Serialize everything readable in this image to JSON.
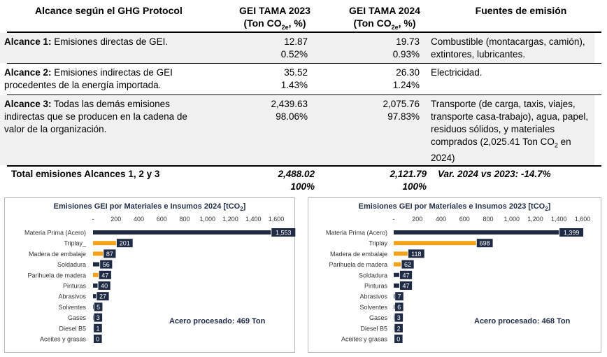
{
  "table": {
    "headers": {
      "scope": "Alcance según el GHG Protocol",
      "y2023_line1": "GEI TAMA 2023",
      "y2023_line2_pre": "(Ton CO",
      "y2023_line2_sub": "2e",
      "y2023_line2_post": ", %)",
      "y2024_line1": "GEI TAMA 2024",
      "y2024_line2_pre": "(Ton CO",
      "y2024_line2_sub": "2e",
      "y2024_line2_post": ", %)",
      "sources": "Fuentes de emisión"
    },
    "rows": [
      {
        "scope_bold": "Alcance 1:",
        "scope_text": " Emisiones directas de GEI.",
        "v2023": "12.87",
        "p2023": "0.52%",
        "v2024": "19.73",
        "p2024": "0.93%",
        "sources": "Combustible (montacargas, camión), extintores, lubricantes."
      },
      {
        "scope_bold": "Alcance 2:",
        "scope_text": " Emisiones indirectas de GEI procedentes de la energía importada.",
        "v2023": "35.52",
        "p2023": "1.43%",
        "v2024": "26.30",
        "p2024": "1.24%",
        "sources": "Electricidad."
      },
      {
        "scope_bold": "Alcance 3:",
        "scope_text": " Todas las demás emisiones indirectas que se producen en la cadena de valor de la organización.",
        "v2023": "2,439.63",
        "p2023": "98.06%",
        "v2024": "2,075.76",
        "p2024": "97.83%",
        "sources_pre": "Transporte (de carga, taxis, viajes, transporte casa-trabajo), agua, papel, residuos sólidos, y materiales comprados (2,025.41 Ton CO",
        "sources_sub": "2",
        "sources_post": " en 2024)"
      }
    ],
    "total": {
      "label": "Total emisiones Alcances 1, 2 y 3",
      "v2023": "2,488.02",
      "p2023": "100%",
      "v2024": "2,121.79",
      "p2024": "100%",
      "variation": "Var. 2024 vs 2023: -14.7%"
    }
  },
  "colors": {
    "navy": "#1f2a44",
    "orange": "#f5a21b",
    "shade": "#f0f0f0"
  },
  "chart_data": [
    {
      "type": "bar",
      "orientation": "horizontal",
      "title_pre": "Emisiones GEI por Materiales e Insumos 2024 [tCO",
      "title_sub": "2",
      "title_post": "]",
      "note": "Acero procesado: 469 Ton",
      "x_ticks": [
        "-",
        "200",
        "400",
        "600",
        "800",
        "1,000",
        "1,200",
        "1,400",
        "1,600"
      ],
      "xlim": [
        0,
        1600
      ],
      "categories": [
        "Materia Prima (Acero)",
        "Triplay_",
        "Madera de embalaje",
        "Soldadura",
        "Parihuela de madera",
        "Pinturas",
        "Abrasivos",
        "Solventes",
        "Gases",
        "Diesel B5",
        "Aceites y grasas"
      ],
      "values": [
        1553,
        201,
        87,
        56,
        47,
        40,
        27,
        5,
        3,
        1,
        0
      ],
      "labels": [
        "1,553",
        "201",
        "87",
        "56",
        "47",
        "40",
        "27",
        "5",
        "3",
        "1",
        "0"
      ],
      "bar_colors": [
        "navy",
        "orange",
        "orange",
        "navy",
        "orange",
        "navy",
        "navy",
        "navy",
        "navy",
        "navy",
        "navy"
      ]
    },
    {
      "type": "bar",
      "orientation": "horizontal",
      "title_pre": "Emisiones GEI por Materiales e Insumos 2023 [tCO",
      "title_sub": "2",
      "title_post": "]",
      "note": "Acero procesado: 468 Ton",
      "x_ticks": [
        "-",
        "200",
        "400",
        "600",
        "800",
        "1,000",
        "1,200",
        "1,400",
        "1,600"
      ],
      "xlim": [
        0,
        1600
      ],
      "categories": [
        "Materia Prima (Acero)",
        "Triplay",
        "Madera de embalaje",
        "Parihuela de madera",
        "Soldadura",
        "Pinturas",
        "Abrasivos",
        "Solventes",
        "Gases",
        "Diesel B5",
        "Aceites y grasas"
      ],
      "values": [
        1399,
        698,
        118,
        62,
        47,
        47,
        7,
        6,
        3,
        2,
        0
      ],
      "labels": [
        "1,399",
        "698",
        "118",
        "62",
        "47",
        "47",
        "7",
        "6",
        "3",
        "2",
        "0"
      ],
      "bar_colors": [
        "navy",
        "orange",
        "orange",
        "orange",
        "navy",
        "navy",
        "navy",
        "navy",
        "navy",
        "navy",
        "navy"
      ]
    }
  ]
}
